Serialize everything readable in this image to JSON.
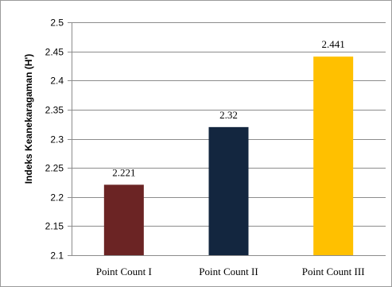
{
  "chart_data": {
    "type": "bar",
    "title": "",
    "xlabel": "",
    "ylabel": "Indeks Keanekaragaman  (H')",
    "categories": [
      "Point Count I",
      "Point Count II",
      "Point Count III"
    ],
    "values": [
      2.221,
      2.32,
      2.441
    ],
    "data_labels": [
      "2.221",
      "2.32",
      "2.441"
    ],
    "bar_colors": [
      "#6b2424",
      "#13263f",
      "#ffc000"
    ],
    "ylim": [
      2.1,
      2.5
    ],
    "yticks": [
      2.1,
      2.15,
      2.2,
      2.25,
      2.3,
      2.35,
      2.4,
      2.45,
      2.5
    ],
    "ytick_labels": [
      "2.1",
      "2.15",
      "2.2",
      "2.25",
      "2.3",
      "2.35",
      "2.4",
      "2.45",
      "2.5"
    ],
    "grid": true,
    "grid_color": "#8c8c8c",
    "legend": "none"
  }
}
